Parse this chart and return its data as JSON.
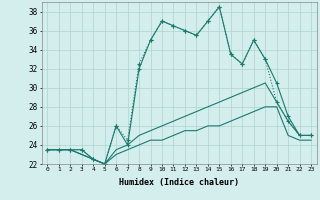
{
  "xlabel": "Humidex (Indice chaleur)",
  "x_values": [
    0,
    1,
    2,
    3,
    4,
    5,
    6,
    7,
    8,
    9,
    10,
    11,
    12,
    13,
    14,
    15,
    16,
    17,
    18,
    19,
    20,
    21,
    22,
    23
  ],
  "line1": [
    23.5,
    23.5,
    23.5,
    23.5,
    22.5,
    22.0,
    26.0,
    24.0,
    32.0,
    35.0,
    37.0,
    36.5,
    36.0,
    35.5,
    37.0,
    38.5,
    33.5,
    32.5,
    35.0,
    33.0,
    30.5,
    27.0,
    25.0,
    25.0
  ],
  "line2": [
    23.5,
    23.5,
    23.5,
    23.5,
    22.5,
    22.0,
    26.0,
    24.5,
    32.5,
    35.0,
    37.0,
    36.5,
    36.0,
    35.5,
    37.0,
    38.5,
    33.5,
    32.5,
    35.0,
    33.0,
    28.5,
    26.5,
    25.0,
    25.0
  ],
  "line3": [
    23.5,
    23.5,
    23.5,
    23.0,
    22.5,
    22.0,
    23.5,
    24.0,
    25.0,
    25.5,
    26.0,
    26.5,
    27.0,
    27.5,
    28.0,
    28.5,
    29.0,
    29.5,
    30.0,
    30.5,
    28.5,
    26.5,
    25.0,
    25.0
  ],
  "line4": [
    23.5,
    23.5,
    23.5,
    23.0,
    22.5,
    22.0,
    23.0,
    23.5,
    24.0,
    24.5,
    24.5,
    25.0,
    25.5,
    25.5,
    26.0,
    26.0,
    26.5,
    27.0,
    27.5,
    28.0,
    28.0,
    25.0,
    24.5,
    24.5
  ],
  "line_color": "#1a7a6e",
  "bg_color": "#d4eeed",
  "grid_color": "#aed4d0",
  "ylim": [
    22,
    39
  ],
  "yticks": [
    22,
    24,
    26,
    28,
    30,
    32,
    34,
    36,
    38
  ],
  "xlim": [
    -0.5,
    23.5
  ]
}
